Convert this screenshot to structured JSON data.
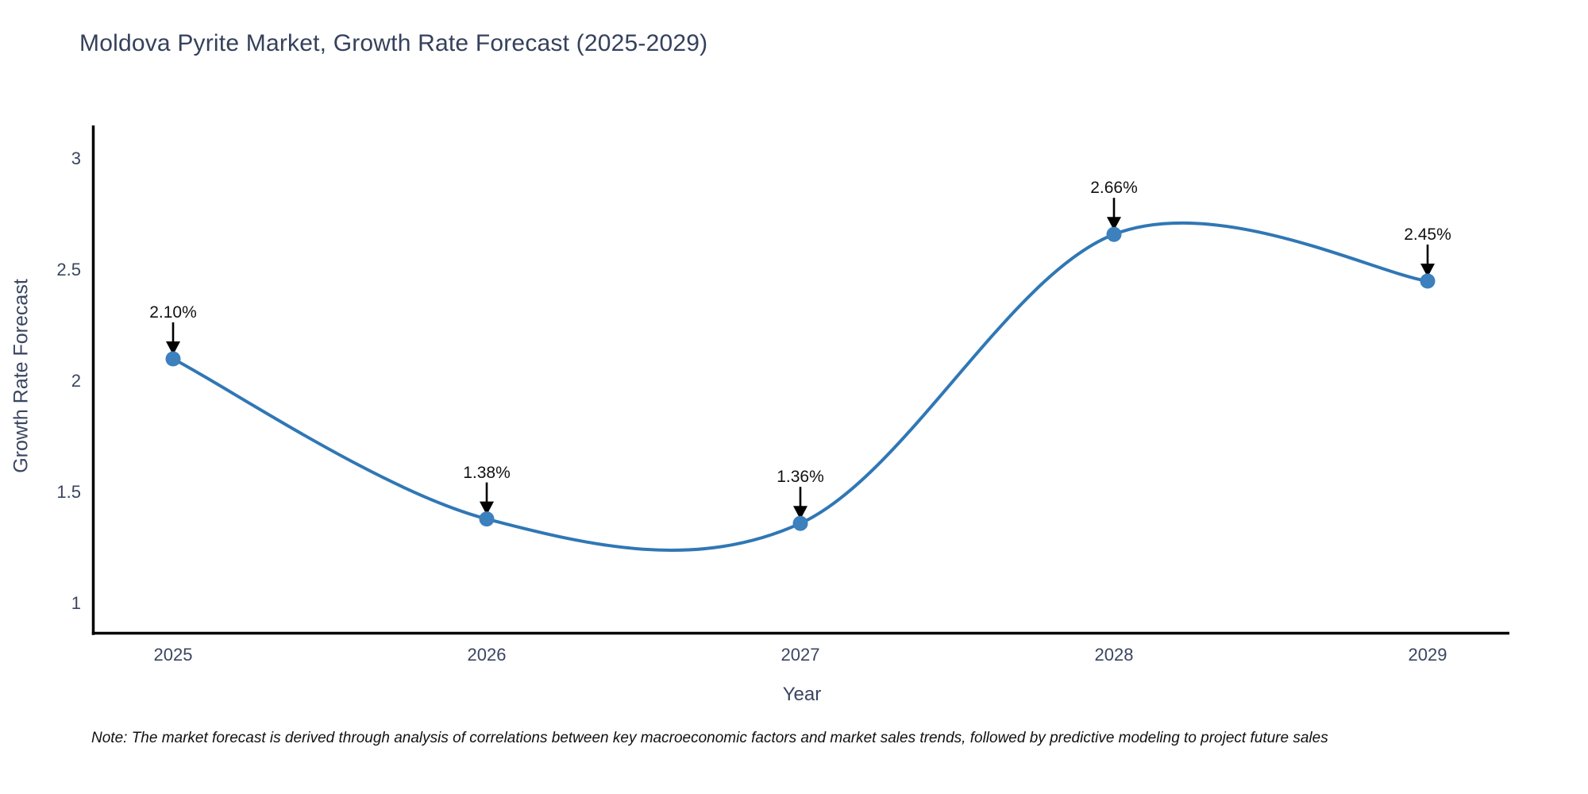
{
  "title": "Moldova Pyrite Market, Growth Rate Forecast (2025-2029)",
  "note": "Note: The market forecast is derived through analysis of correlations between key macroeconomic factors and market sales trends, followed by predictive modeling to project future sales",
  "chart_data": {
    "type": "line",
    "title": "Moldova Pyrite Market, Growth Rate Forecast (2025-2029)",
    "xlabel": "Year",
    "ylabel": "Growth Rate Forecast",
    "x": [
      2025,
      2026,
      2027,
      2028,
      2029
    ],
    "values": [
      2.1,
      1.38,
      1.36,
      2.66,
      2.45
    ],
    "point_labels": [
      "2.10%",
      "1.38%",
      "1.36%",
      "2.66%",
      "2.45%"
    ],
    "xtick_labels": [
      "2025",
      "2026",
      "2027",
      "2028",
      "2029"
    ],
    "ytick_values": [
      1,
      1.5,
      2,
      2.5,
      3
    ],
    "ytick_labels": [
      "1",
      "1.5",
      "2",
      "2.5",
      "3"
    ],
    "xlim": [
      2024.74,
      2029.26
    ],
    "ylim": [
      0.875,
      3.14
    ],
    "grid": false,
    "legend": "none",
    "curve": "smooth-spline",
    "line_color": "#3077b5",
    "marker_color": "#3c80bd",
    "annotation_color": "#111111",
    "axis_text_color": "#3a4660",
    "spine_color": "#000000",
    "background_color": "#ffffff"
  }
}
